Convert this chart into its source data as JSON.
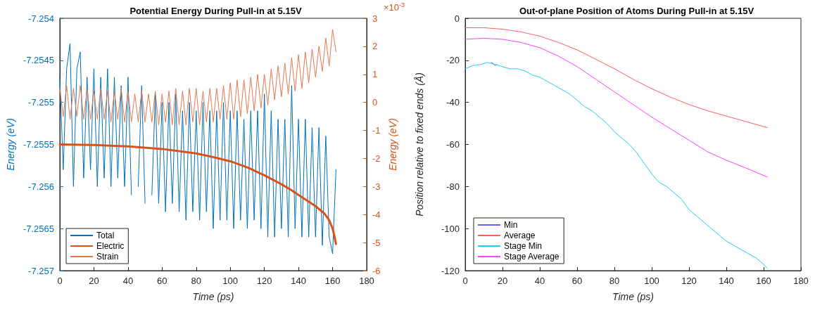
{
  "chart_data": [
    {
      "type": "line",
      "title": "Potential Energy During Pull-in at 5.15V",
      "xlabel": "Time (ps)",
      "ylabel": "Energy (eV)",
      "y2label": "Energy (eV)",
      "xlim": [
        0,
        180
      ],
      "xticks": [
        0,
        20,
        40,
        60,
        80,
        100,
        120,
        140,
        160,
        180
      ],
      "ylim": [
        -7.257,
        -7.254
      ],
      "yticks": [
        -7.257,
        -7.2565,
        -7.256,
        -7.2555,
        -7.255,
        -7.2545,
        -7.254
      ],
      "y2lim": [
        -6,
        3
      ],
      "y2ticks": [
        -6,
        -5,
        -4,
        -3,
        -2,
        -1,
        0,
        1,
        2,
        3
      ],
      "annotations": [
        "×10$^{-3}$"
      ],
      "grid": false,
      "legend": "bottom left",
      "marker": "none",
      "line_style": "solid",
      "series": [
        {
          "name": "Total",
          "color": "#0072bd",
          "x": [
            0,
            2,
            4,
            6,
            8,
            10,
            12,
            14,
            16,
            18,
            20,
            22,
            24,
            26,
            28,
            30,
            32,
            34,
            36,
            38,
            40,
            42,
            44,
            46,
            48,
            50,
            52,
            54,
            56,
            58,
            60,
            62,
            64,
            66,
            68,
            70,
            72,
            74,
            76,
            78,
            80,
            82,
            84,
            86,
            88,
            90,
            92,
            94,
            96,
            98,
            100,
            102,
            104,
            106,
            108,
            110,
            112,
            114,
            116,
            118,
            120,
            122,
            124,
            126,
            128,
            130,
            132,
            134,
            136,
            138,
            140,
            142,
            144,
            146,
            148,
            150,
            152,
            154,
            156,
            158,
            160,
            162
          ],
          "values": [
            -7.2547,
            -7.2558,
            -7.2546,
            -7.2543,
            -7.256,
            -7.2546,
            -7.2544,
            -7.2559,
            -7.2547,
            -7.2558,
            -7.2546,
            -7.256,
            -7.2547,
            -7.2559,
            -7.2546,
            -7.256,
            -7.2547,
            -7.2559,
            -7.2548,
            -7.256,
            -7.2547,
            -7.2561,
            null,
            -7.256,
            -7.2548,
            -7.2562,
            null,
            -7.2561,
            -7.2549,
            -7.2562,
            -7.255,
            -7.2563,
            -7.255,
            -7.2562,
            -7.2549,
            -7.2563,
            -7.2551,
            -7.2564,
            -7.255,
            -7.2563,
            -7.2551,
            -7.2564,
            -7.255,
            -7.2563,
            -7.2551,
            -7.2565,
            -7.2551,
            -7.2564,
            -7.255,
            -7.2564,
            -7.2551,
            -7.2565,
            -7.2551,
            -7.2564,
            -7.2552,
            -7.2565,
            -7.2551,
            -7.2564,
            -7.2551,
            -7.2565,
            -7.2549,
            -7.2566,
            -7.2551,
            -7.2566,
            -7.2552,
            -7.2565,
            -7.2552,
            -7.2566,
            -7.2548,
            -7.2565,
            -7.2552,
            -7.2566,
            -7.2552,
            -7.2566,
            -7.2553,
            -7.2566,
            -7.2553,
            -7.2567,
            -7.2554,
            -7.2566,
            -7.2568,
            -7.2558
          ]
        },
        {
          "name": "Electric",
          "color": "#d95319",
          "axis": "y2",
          "x": [
            0,
            20,
            40,
            60,
            80,
            90,
            100,
            110,
            120,
            130,
            135,
            140,
            145,
            150,
            155,
            158,
            160,
            161,
            162
          ],
          "values": [
            -1.5,
            -1.52,
            -1.57,
            -1.66,
            -1.82,
            -1.95,
            -2.1,
            -2.32,
            -2.6,
            -2.92,
            -3.1,
            -3.3,
            -3.5,
            -3.7,
            -3.95,
            -4.2,
            -4.5,
            -4.75,
            -5.05
          ]
        },
        {
          "name": "Strain",
          "color": "#e07a50",
          "axis": "y2",
          "x": [
            0,
            2,
            4,
            6,
            8,
            10,
            12,
            14,
            16,
            18,
            20,
            22,
            24,
            26,
            28,
            30,
            32,
            34,
            36,
            38,
            40,
            42,
            44,
            46,
            48,
            50,
            52,
            54,
            56,
            58,
            60,
            62,
            64,
            66,
            68,
            70,
            72,
            74,
            76,
            78,
            80,
            82,
            84,
            86,
            88,
            90,
            92,
            94,
            96,
            98,
            100,
            102,
            104,
            106,
            108,
            110,
            112,
            114,
            116,
            118,
            120,
            122,
            124,
            126,
            128,
            130,
            132,
            134,
            136,
            138,
            140,
            142,
            144,
            146,
            148,
            150,
            152,
            154,
            156,
            158,
            160,
            162
          ],
          "values": [
            0.5,
            -0.5,
            0.6,
            -0.6,
            0.5,
            -0.5,
            0.6,
            -0.6,
            0.5,
            -0.6,
            0.4,
            -0.6,
            0.5,
            -0.6,
            0.4,
            -0.7,
            0.4,
            -0.6,
            0.5,
            -0.7,
            0.4,
            -0.7,
            0.3,
            -0.7,
            0.4,
            -0.7,
            0.3,
            -0.7,
            0.4,
            -0.8,
            0.3,
            -0.7,
            0.4,
            -0.8,
            0.5,
            -0.8,
            0.4,
            -0.8,
            0.5,
            -0.7,
            0.5,
            -0.8,
            0.4,
            -0.7,
            0.5,
            -0.7,
            0.5,
            -0.6,
            0.6,
            -0.6,
            0.7,
            -0.6,
            0.8,
            -0.5,
            0.8,
            -0.4,
            0.9,
            -0.3,
            1.0,
            -0.2,
            1.0,
            -0.1,
            1.2,
            0.1,
            1.3,
            0.2,
            1.4,
            0.3,
            1.6,
            0.4,
            1.7,
            0.5,
            1.8,
            0.7,
            1.9,
            0.9,
            2.0,
            1.1,
            2.3,
            1.3,
            2.6,
            1.8
          ]
        }
      ]
    },
    {
      "type": "line",
      "title": "Out-of-plane Position of Atoms During Pull-in at 5.15V",
      "xlabel": "Time (ps)",
      "ylabel": "Position relative to fixed ends (Å)",
      "xlim": [
        0,
        180
      ],
      "xticks": [
        0,
        20,
        40,
        60,
        80,
        100,
        120,
        140,
        160,
        180
      ],
      "ylim": [
        -120,
        0
      ],
      "yticks": [
        -120,
        -100,
        -80,
        -60,
        -40,
        -20,
        0
      ],
      "grid": false,
      "legend": "bottom left",
      "marker": "none",
      "line_style": "solid",
      "series": [
        {
          "name": "Min",
          "color": "#6060ff",
          "x": [
            14,
            15,
            16,
            17
          ],
          "values": [
            -21,
            -21.5,
            -22.5,
            -22
          ]
        },
        {
          "name": "Average",
          "color": "#ff6060",
          "x": [
            0,
            10,
            20,
            30,
            40,
            50,
            60,
            70,
            80,
            90,
            100,
            110,
            120,
            130,
            140,
            150,
            162
          ],
          "values": [
            -4.5,
            -4.5,
            -5.2,
            -6.5,
            -8.5,
            -11.5,
            -15,
            -19.5,
            -24,
            -29,
            -33.5,
            -37.5,
            -41,
            -44,
            -46.5,
            -49,
            -52
          ]
        },
        {
          "name": "Stage Min",
          "color": "#22ccf0",
          "x": [
            0,
            4,
            8,
            12,
            16,
            20,
            24,
            28,
            32,
            36,
            40,
            44,
            48,
            52,
            56,
            60,
            64,
            68,
            72,
            76,
            80,
            84,
            88,
            92,
            96,
            100,
            104,
            108,
            112,
            116,
            120,
            124,
            128,
            132,
            136,
            140,
            144,
            148,
            152,
            156,
            160,
            162
          ],
          "values": [
            -24,
            -22.5,
            -22,
            -21,
            -22,
            -23,
            -24,
            -24,
            -25,
            -27,
            -28,
            -30,
            -32,
            -34,
            -36,
            -39,
            -42,
            -44,
            -47,
            -50,
            -54,
            -57,
            -60,
            -64,
            -69,
            -74,
            -78,
            -80,
            -83,
            -86,
            -91,
            -94,
            -97,
            -100,
            -103,
            -106,
            -108,
            -110,
            -112,
            -114,
            -117,
            -119
          ]
        },
        {
          "name": "Stage Average",
          "color": "#ff40ff",
          "x": [
            0,
            10,
            20,
            30,
            40,
            50,
            60,
            70,
            80,
            90,
            100,
            110,
            120,
            130,
            140,
            150,
            162
          ],
          "values": [
            -10,
            -9.5,
            -10,
            -11.5,
            -14,
            -18,
            -23,
            -29,
            -35,
            -41,
            -47,
            -52.5,
            -58,
            -63.5,
            -67.5,
            -71,
            -75.5
          ]
        }
      ]
    }
  ]
}
